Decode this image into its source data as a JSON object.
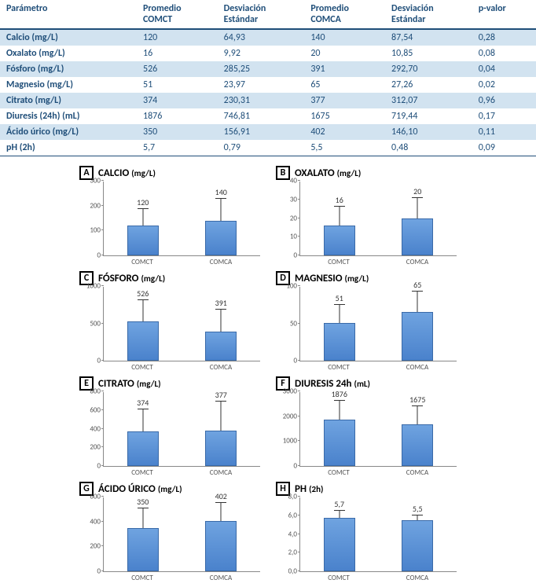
{
  "table": {
    "headers": [
      {
        "l1": "Parámetro",
        "l2": ""
      },
      {
        "l1": "Promedio",
        "l2": "COMCT"
      },
      {
        "l1": "Desviación",
        "l2": "Estándar"
      },
      {
        "l1": "Promedio",
        "l2": "COMCA"
      },
      {
        "l1": "Desviación",
        "l2": "Estándar"
      },
      {
        "l1": "p-valor",
        "l2": ""
      }
    ],
    "rows": [
      {
        "c": [
          "Calcio (mg/L)",
          "120",
          "64,93",
          "140",
          "87,54",
          "0,28"
        ],
        "alt": true
      },
      {
        "c": [
          "Oxalato (mg/L)",
          "16",
          "9,92",
          "20",
          "10,85",
          "0,08"
        ],
        "alt": false
      },
      {
        "c": [
          "Fósforo (mg/L)",
          "526",
          "285,25",
          "391",
          "292,70",
          "0,04"
        ],
        "alt": true
      },
      {
        "c": [
          "Magnesio (mg/L)",
          "51",
          "23,97",
          "65",
          "27,26",
          "0,02"
        ],
        "alt": false
      },
      {
        "c": [
          "Citrato (mg/L)",
          "374",
          "230,31",
          "377",
          "312,07",
          "0,96"
        ],
        "alt": true
      },
      {
        "c": [
          "Diuresis (24h) (mL)",
          "1876",
          "746,81",
          "1675",
          "719,44",
          "0,17"
        ],
        "alt": false
      },
      {
        "c": [
          "Ácido úrico (mg/L)",
          "350",
          "156,91",
          "402",
          "146,10",
          "0,11"
        ],
        "alt": true
      },
      {
        "c": [
          "pH (2h)",
          "5,7",
          "0,79",
          "5,5",
          "0,48",
          "0,09"
        ],
        "alt": false
      }
    ]
  },
  "charts": [
    {
      "letter": "A",
      "name": "CALCIO",
      "unit": "(mg/L)",
      "ymax": 300,
      "ystep": 100,
      "decimals": 0,
      "bars": [
        {
          "cat": "COMCT",
          "val": 120,
          "sd": 64.93,
          "lbl": "120"
        },
        {
          "cat": "COMCA",
          "val": 140,
          "sd": 87.54,
          "lbl": "140"
        }
      ]
    },
    {
      "letter": "B",
      "name": "OXALATO",
      "unit": "(mg/L)",
      "ymax": 40,
      "ystep": 10,
      "decimals": 0,
      "bars": [
        {
          "cat": "COMCT",
          "val": 16,
          "sd": 9.92,
          "lbl": "16"
        },
        {
          "cat": "COMCA",
          "val": 20,
          "sd": 10.85,
          "lbl": "20"
        }
      ]
    },
    {
      "letter": "C",
      "name": "FÓSFORO",
      "unit": "(mg/L)",
      "ymax": 1000,
      "ystep": 500,
      "decimals": 0,
      "bars": [
        {
          "cat": "COMCT",
          "val": 526,
          "sd": 285.25,
          "lbl": "526"
        },
        {
          "cat": "COMCA",
          "val": 391,
          "sd": 292.7,
          "lbl": "391"
        }
      ]
    },
    {
      "letter": "D",
      "name": "MAGNESIO",
      "unit": "(mg/L)",
      "ymax": 100,
      "ystep": 50,
      "decimals": 0,
      "bars": [
        {
          "cat": "COMCT",
          "val": 51,
          "sd": 23.97,
          "lbl": "51"
        },
        {
          "cat": "COMCA",
          "val": 65,
          "sd": 27.26,
          "lbl": "65"
        }
      ]
    },
    {
      "letter": "E",
      "name": "CITRATO",
      "unit": "(mg/L)",
      "ymax": 800,
      "ystep": 200,
      "decimals": 0,
      "bars": [
        {
          "cat": "COMCT",
          "val": 374,
          "sd": 230.31,
          "lbl": "374"
        },
        {
          "cat": "COMCA",
          "val": 377,
          "sd": 312.07,
          "lbl": "377"
        }
      ]
    },
    {
      "letter": "F",
      "name": "DIURESIS 24h",
      "unit": "(mL)",
      "ymax": 3000,
      "ystep": 1000,
      "decimals": 0,
      "bars": [
        {
          "cat": "COMCT",
          "val": 1876,
          "sd": 746.81,
          "lbl": "1876"
        },
        {
          "cat": "COMCA",
          "val": 1675,
          "sd": 719.44,
          "lbl": "1675"
        }
      ]
    },
    {
      "letter": "G",
      "name": "ÁCIDO ÚRICO",
      "unit": "(mg/L)",
      "ymax": 600,
      "ystep": 200,
      "decimals": 0,
      "bars": [
        {
          "cat": "COMCT",
          "val": 350,
          "sd": 156.91,
          "lbl": "350"
        },
        {
          "cat": "COMCA",
          "val": 402,
          "sd": 146.1,
          "lbl": "402"
        }
      ]
    },
    {
      "letter": "H",
      "name": "PH",
      "unit": "(2h)",
      "ymax": 8,
      "ystep": 2,
      "decimals": 1,
      "bars": [
        {
          "cat": "COMCT",
          "val": 5.7,
          "sd": 0.79,
          "lbl": "5,7"
        },
        {
          "cat": "COMCA",
          "val": 5.5,
          "sd": 0.48,
          "lbl": "5,5"
        }
      ]
    }
  ],
  "style": {
    "bar_fill_top": "#6fa3e0",
    "bar_fill_bottom": "#4a82cc",
    "bar_border": "#3a6aa8",
    "header_color": "#1f4e79",
    "alt_row_bg": "#d2e3f0"
  }
}
